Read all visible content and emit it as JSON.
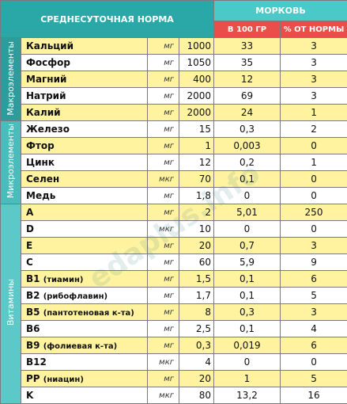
{
  "header": {
    "norm_title": "СРЕДНЕСУТОЧНАЯ НОРМА",
    "product": "МОРКОВЬ",
    "per100": "В 100 ГР",
    "percent": "% ОТ НОРМЫ"
  },
  "groups": {
    "macro": "Макроэлементы",
    "micro": "Микроэлементы",
    "vitamins": "Витамины"
  },
  "colors": {
    "macro_group": "#2e9c9c",
    "micro_group": "#4bbcbc",
    "vitamins_group": "#5cc8c8",
    "row_yellow": "#fff3a0",
    "row_white": "#ffffff",
    "header_teal": "#2aa8a8",
    "header_red": "#e84e4a"
  },
  "watermark": "edaplus.info",
  "rows": [
    {
      "name": "Кальций",
      "note": "",
      "unit": "мг",
      "norm": "1000",
      "per100": "33",
      "percent": "3"
    },
    {
      "name": "Фосфор",
      "note": "",
      "unit": "мг",
      "norm": "1050",
      "per100": "35",
      "percent": "3"
    },
    {
      "name": "Магний",
      "note": "",
      "unit": "мг",
      "norm": "400",
      "per100": "12",
      "percent": "3"
    },
    {
      "name": "Натрий",
      "note": "",
      "unit": "мг",
      "norm": "2000",
      "per100": "69",
      "percent": "3"
    },
    {
      "name": "Калий",
      "note": "",
      "unit": "мг",
      "norm": "2000",
      "per100": "24",
      "percent": "1"
    },
    {
      "name": "Железо",
      "note": "",
      "unit": "мг",
      "norm": "15",
      "per100": "0,3",
      "percent": "2"
    },
    {
      "name": "Фтор",
      "note": "",
      "unit": "мг",
      "norm": "1",
      "per100": "0,003",
      "percent": "0"
    },
    {
      "name": "Цинк",
      "note": "",
      "unit": "мг",
      "norm": "12",
      "per100": "0,2",
      "percent": "1"
    },
    {
      "name": "Селен",
      "note": "",
      "unit": "мкг",
      "norm": "70",
      "per100": "0,1",
      "percent": "0"
    },
    {
      "name": "Медь",
      "note": "",
      "unit": "мг",
      "norm": "1,8",
      "per100": "0",
      "percent": "0"
    },
    {
      "name": "A",
      "note": "",
      "unit": "мг",
      "norm": "2",
      "per100": "5,01",
      "percent": "250"
    },
    {
      "name": "D",
      "note": "",
      "unit": "мкг",
      "norm": "10",
      "per100": "0",
      "percent": "0"
    },
    {
      "name": "E",
      "note": "",
      "unit": "мг",
      "norm": "20",
      "per100": "0,7",
      "percent": "3"
    },
    {
      "name": "C",
      "note": "",
      "unit": "мг",
      "norm": "60",
      "per100": "5,9",
      "percent": "9"
    },
    {
      "name": "B1",
      "note": "(тиамин)",
      "unit": "мг",
      "norm": "1,5",
      "per100": "0,1",
      "percent": "6"
    },
    {
      "name": "B2",
      "note": "(рибофлавин)",
      "unit": "мг",
      "norm": "1,7",
      "per100": "0,1",
      "percent": "5"
    },
    {
      "name": "B5",
      "note": "(пантотеновая к-та)",
      "unit": "мг",
      "norm": "8",
      "per100": "0,3",
      "percent": "3"
    },
    {
      "name": "B6",
      "note": "",
      "unit": "мг",
      "norm": "2,5",
      "per100": "0,1",
      "percent": "4"
    },
    {
      "name": "B9",
      "note": "(фолиевая к-та)",
      "unit": "мг",
      "norm": "0,3",
      "per100": "0,019",
      "percent": "6"
    },
    {
      "name": "B12",
      "note": "",
      "unit": "мкг",
      "norm": "4",
      "per100": "0",
      "percent": "0"
    },
    {
      "name": "PP",
      "note": "(ниацин)",
      "unit": "мг",
      "norm": "20",
      "per100": "1",
      "percent": "5"
    },
    {
      "name": "K",
      "note": "",
      "unit": "мкг",
      "norm": "80",
      "per100": "13,2",
      "percent": "16"
    }
  ]
}
